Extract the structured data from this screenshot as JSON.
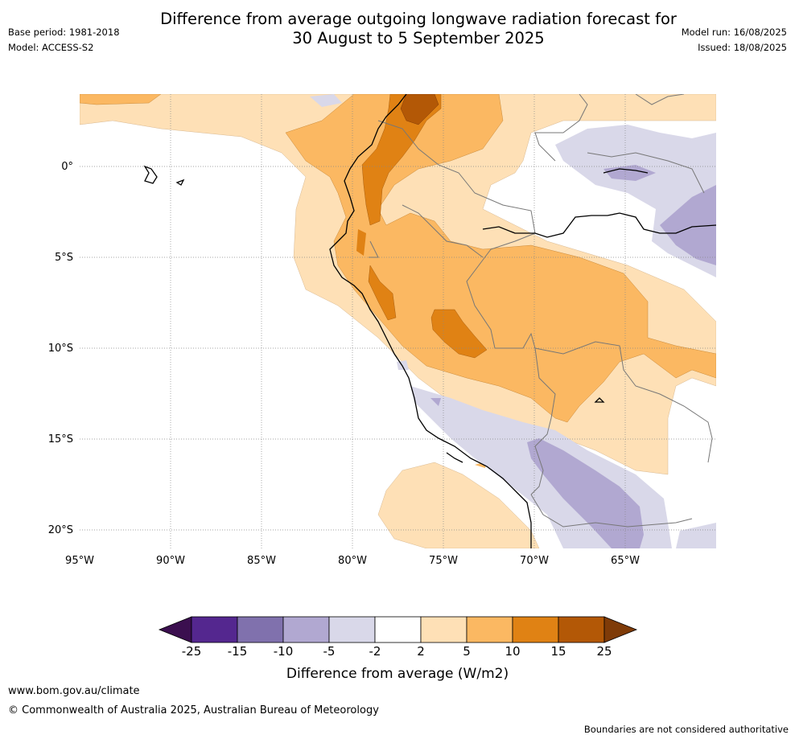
{
  "title_line1": "Difference from average outgoing longwave radiation forecast for",
  "title_line2": "30 August to 5 September 2025",
  "base_period": "Base period: 1981-2018",
  "model": "Model: ACCESS-S2",
  "model_run": "Model run: 16/08/2025",
  "issued": "Issued: 18/08/2025",
  "lat_labels": [
    "0°",
    "5°S",
    "10°S",
    "15°S",
    "20°S"
  ],
  "lon_labels": [
    "95°W",
    "90°W",
    "85°W",
    "80°W",
    "75°W",
    "70°W",
    "65°W"
  ],
  "colorbar": {
    "label": "Difference from average (W/m2)",
    "ticks": [
      "-25",
      "-15",
      "-10",
      "-5",
      "-2",
      "2",
      "5",
      "10",
      "15",
      "25"
    ],
    "colors": [
      "#3b0f4f",
      "#54278f",
      "#8071ad",
      "#b1a8d1",
      "#d9d8e9",
      "#ffffff",
      "#fee0b6",
      "#fbb862",
      "#e08214",
      "#b35806",
      "#7f3b08"
    ]
  },
  "website": "www.bom.gov.au/climate",
  "copyright": "© Commonwealth of Australia 2025, Australian Bureau of Meteorology",
  "disclaimer": "Boundaries are not considered authoritative"
}
